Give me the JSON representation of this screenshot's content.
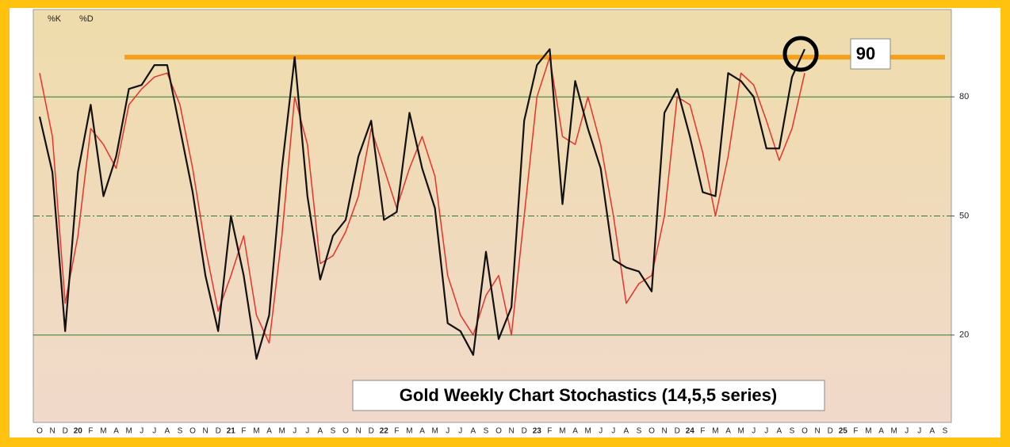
{
  "chart_data": {
    "type": "line",
    "title": "Gold Weekly Chart Stochastics (14,5,5 series)",
    "categories": [
      "O",
      "N",
      "D",
      "20",
      "F",
      "M",
      "A",
      "M",
      "J",
      "J",
      "A",
      "S",
      "O",
      "N",
      "D",
      "21",
      "F",
      "M",
      "A",
      "M",
      "J",
      "J",
      "A",
      "S",
      "O",
      "N",
      "D",
      "22",
      "F",
      "M",
      "A",
      "M",
      "J",
      "J",
      "A",
      "S",
      "O",
      "N",
      "D",
      "23",
      "F",
      "M",
      "A",
      "M",
      "J",
      "J",
      "A",
      "S",
      "O",
      "N",
      "D",
      "24",
      "F",
      "M",
      "A",
      "M",
      "J",
      "J",
      "A",
      "S",
      "O",
      "N",
      "D",
      "25",
      "F",
      "M",
      "A",
      "M",
      "J",
      "J",
      "A",
      "S"
    ],
    "series": [
      {
        "name": "%K",
        "color": "#111111",
        "values": [
          75,
          61,
          21,
          61,
          78,
          55,
          65,
          82,
          83,
          88,
          88,
          72,
          56,
          35,
          21,
          50,
          35,
          14,
          25,
          62,
          90,
          55,
          34,
          45,
          49,
          65,
          74,
          49,
          51,
          76,
          62,
          52,
          23,
          21,
          15,
          41,
          19,
          27,
          74,
          88,
          92,
          53,
          84,
          72,
          62,
          39,
          37,
          36,
          31,
          76,
          82,
          70,
          56,
          55,
          86,
          84,
          80,
          67,
          67,
          85,
          92,
          null,
          null,
          null,
          null,
          null,
          null,
          null,
          null,
          null,
          null,
          null
        ]
      },
      {
        "name": "%D",
        "color": "#e8322a",
        "values": [
          86,
          70,
          28,
          45,
          72,
          68,
          62,
          78,
          82,
          85,
          86,
          78,
          62,
          42,
          26,
          35,
          45,
          25,
          18,
          45,
          80,
          68,
          38,
          40,
          46,
          55,
          72,
          62,
          52,
          62,
          70,
          60,
          35,
          25,
          20,
          30,
          35,
          20,
          50,
          80,
          90,
          70,
          68,
          80,
          68,
          50,
          28,
          33,
          35,
          50,
          80,
          78,
          66,
          50,
          65,
          86,
          83,
          74,
          64,
          72,
          86,
          null,
          null,
          null,
          null,
          null,
          null,
          null,
          null,
          null,
          null,
          null
        ]
      }
    ],
    "ylim": [
      -2,
      102
    ],
    "yticks": [
      20,
      50,
      80
    ],
    "grid": true,
    "reference_value": 90
  }
}
